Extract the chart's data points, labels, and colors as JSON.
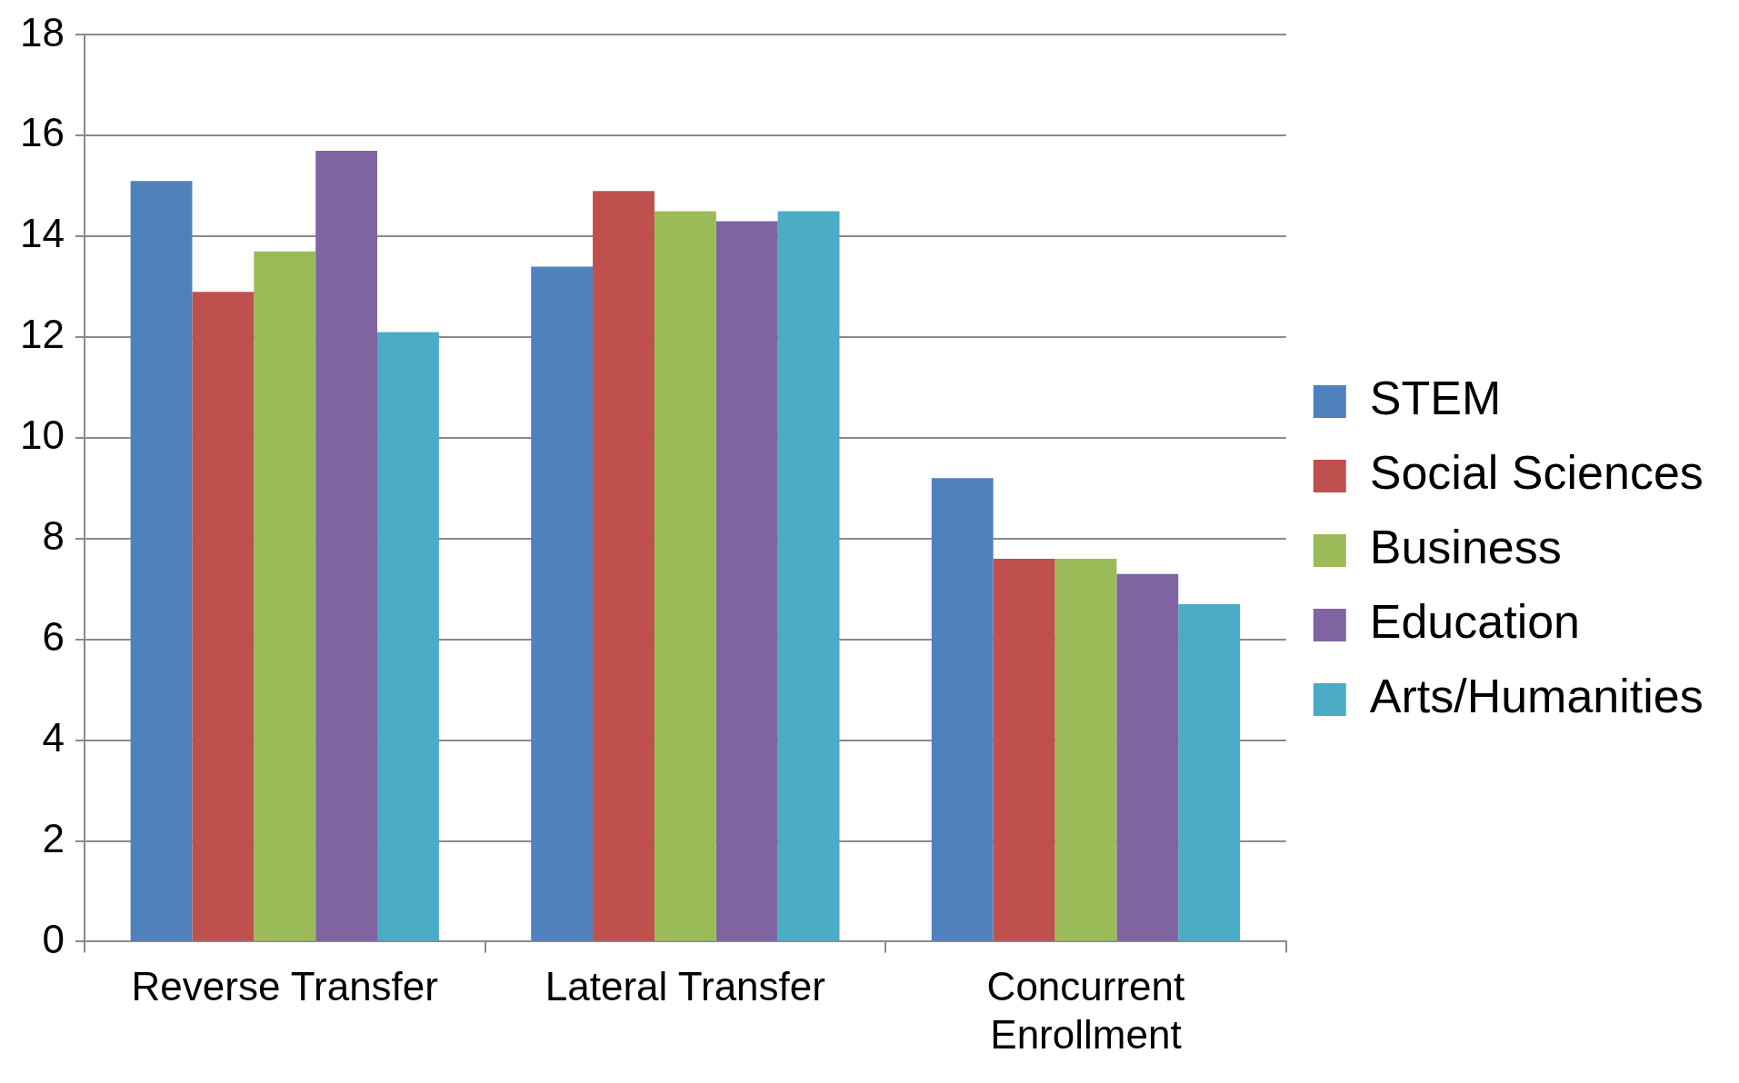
{
  "chart_data": {
    "type": "bar",
    "categories": [
      "Reverse Transfer",
      "Lateral Transfer",
      "Concurrent Enrollment"
    ],
    "series": [
      {
        "name": "STEM",
        "color": "#4f81bd",
        "values": [
          15.1,
          13.4,
          9.2
        ]
      },
      {
        "name": "Social Sciences",
        "color": "#c0504d",
        "values": [
          12.9,
          14.9,
          7.6
        ]
      },
      {
        "name": "Business",
        "color": "#9bbb59",
        "values": [
          13.7,
          14.5,
          7.6
        ]
      },
      {
        "name": "Education",
        "color": "#8064a2",
        "values": [
          15.7,
          14.3,
          7.3
        ]
      },
      {
        "name": "Arts/Humanities",
        "color": "#4bacc6",
        "values": [
          12.1,
          14.5,
          6.7
        ]
      }
    ],
    "ylim": [
      0,
      18
    ],
    "yticks": [
      0,
      2,
      4,
      6,
      8,
      10,
      12,
      14,
      16,
      18
    ],
    "grid": "y",
    "legend": "right"
  }
}
